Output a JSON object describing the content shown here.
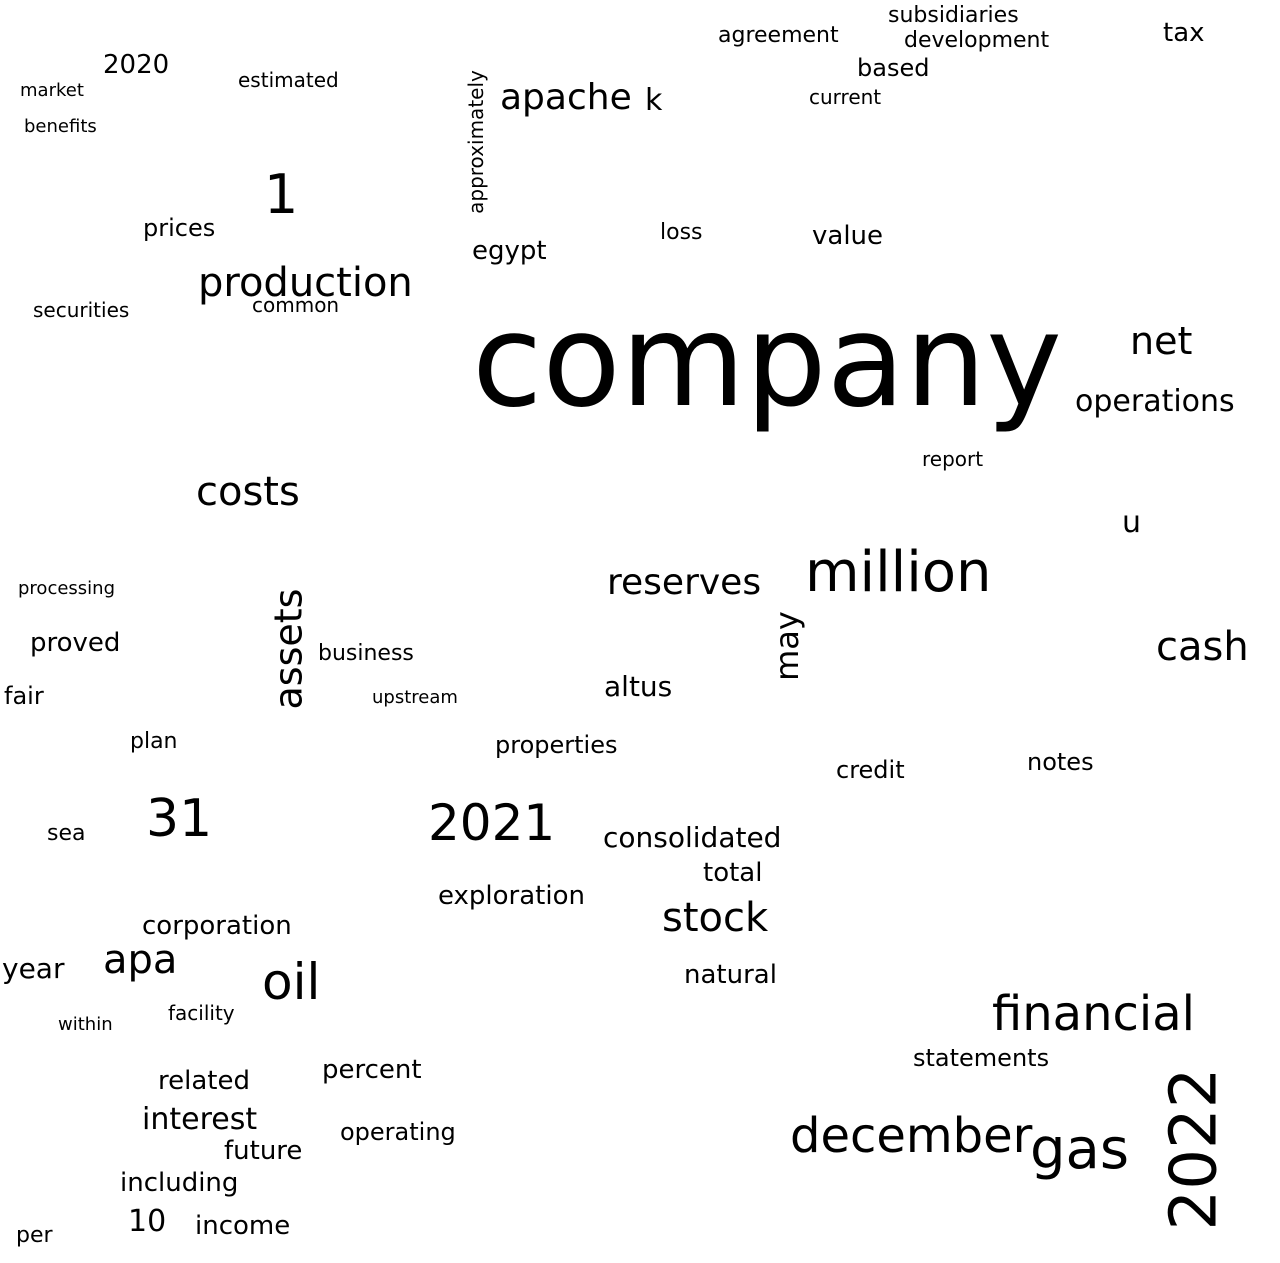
{
  "words": [
    "company",
    "million",
    "december",
    "financial",
    "gas",
    "2022",
    "oil",
    "2021",
    "31",
    "production",
    "apache",
    "costs",
    "assets",
    "reserves",
    "cash",
    "stock",
    "apa",
    "1",
    "net",
    "operations",
    "interest",
    "income",
    "10",
    "may",
    "consolidated",
    "exploration",
    "including",
    "future",
    "statements",
    "corporation",
    "natural",
    "percent",
    "related",
    "total",
    "notes",
    "credit",
    "operating",
    "properties",
    "year",
    "value",
    "altus",
    "proved",
    "business",
    "development",
    "subsidiaries",
    "tax",
    "agreement",
    "based",
    "egypt",
    "loss",
    "approximately",
    "current",
    "prices",
    "common",
    "securities",
    "estimated",
    "2020",
    "u",
    "k",
    "report",
    "fair",
    "plan",
    "per",
    "sea",
    "within",
    "upstream",
    "facility",
    "processing",
    "market",
    "benefits"
  ],
  "colors": {
    "text": "#000000",
    "background": "#ffffff"
  }
}
